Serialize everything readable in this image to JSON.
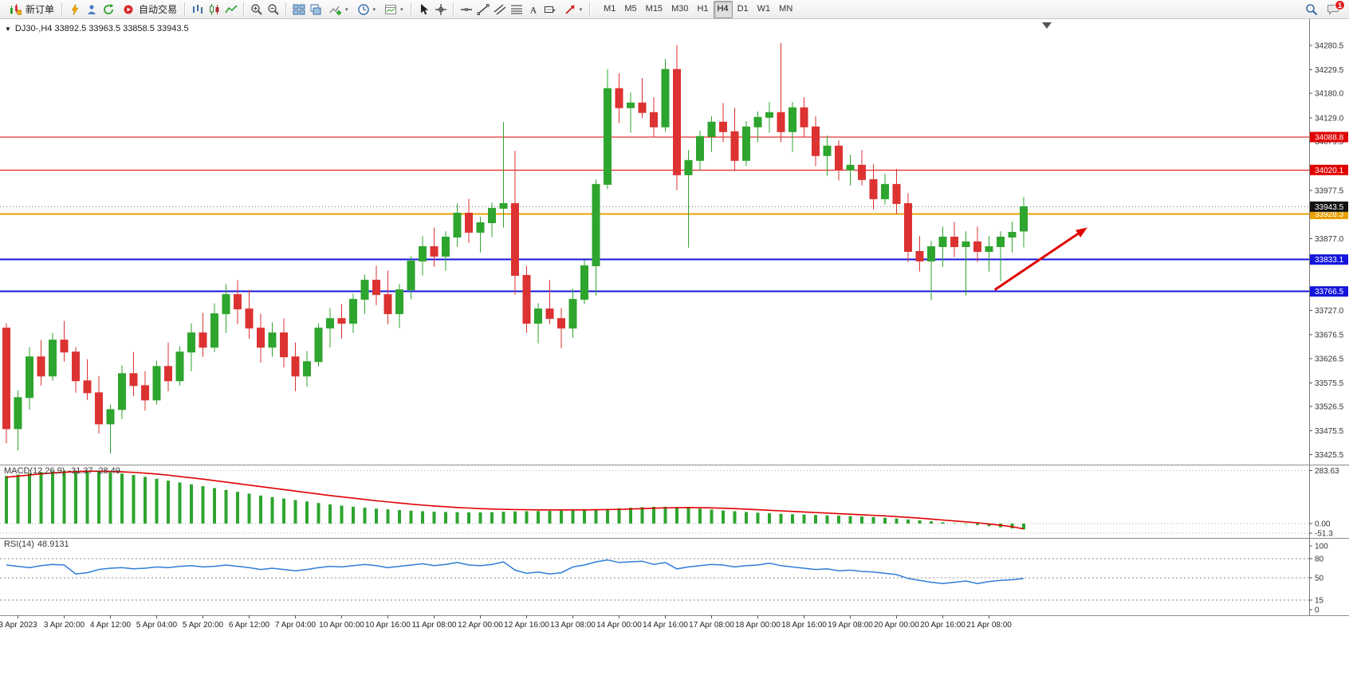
{
  "toolbar": {
    "new_order": "新订单",
    "auto_trading": "自动交易",
    "timeframes": [
      "M1",
      "M5",
      "M15",
      "M30",
      "H1",
      "H4",
      "D1",
      "W1",
      "MN"
    ],
    "active_timeframe": "H4",
    "badge_count": "1"
  },
  "chart": {
    "title": "DJ30-,H4 33892.5 33963.5 33858.5 33943.5"
  },
  "macd": {
    "label": "MACD(12,26,9)",
    "values": "-31.37 -28.49"
  },
  "rsi": {
    "label": "RSI(14)",
    "value": "48.9131"
  },
  "chart_data": {
    "type": "candlestick",
    "symbol": "DJ30-",
    "period": "H4",
    "current_price": 33943.5,
    "last_bar": {
      "open": 33892.5,
      "high": 33963.5,
      "low": 33858.5,
      "close": 33943.5
    },
    "up_color": "#2EA52E",
    "down_color": "#DC3232",
    "ylim": [
      33405,
      34335
    ],
    "price_axis_ticks": [
      "34280.5",
      "34229.5",
      "34180.0",
      "34129.0",
      "34079.5",
      "33977.5",
      "33877.0",
      "33727.0",
      "33676.5",
      "33626.5",
      "33575.5",
      "33526.5",
      "33475.5",
      "33425.5"
    ],
    "horizontal_lines": [
      {
        "price": 34088.8,
        "label": "34088.8",
        "color": "#E00000",
        "width": 1
      },
      {
        "price": 34020.1,
        "label": "34020.1",
        "color": "#E00000",
        "width": 1
      },
      {
        "price": 33928.3,
        "label": "33928.3",
        "color": "#E8A000",
        "width": 2
      },
      {
        "price": 33833.1,
        "label": "33833.1",
        "color": "#1414DC",
        "width": 2
      },
      {
        "price": 33766.5,
        "label": "33766.5",
        "color": "#1414DC",
        "width": 2
      }
    ],
    "trend_arrow": {
      "from_candle": 85.5,
      "from_price": 33770,
      "to_candle": 93.5,
      "to_price": 33900,
      "color": "#E00000"
    },
    "shift_marker_candle": 90,
    "label_start_index": 1,
    "label_step": 4,
    "time_labels": [
      "3 Apr 2023",
      "3 Apr 20:00",
      "4 Apr 12:00",
      "5 Apr 04:00",
      "5 Apr 20:00",
      "6 Apr 12:00",
      "7 Apr 04:00",
      "10 Apr 00:00",
      "10 Apr 16:00",
      "11 Apr 08:00",
      "12 Apr 00:00",
      "12 Apr 16:00",
      "13 Apr 08:00",
      "14 Apr 00:00",
      "14 Apr 16:00",
      "17 Apr 08:00",
      "18 Apr 00:00",
      "18 Apr 16:00",
      "19 Apr 08:00",
      "20 Apr 00:00",
      "20 Apr 16:00",
      "21 Apr 08:00"
    ],
    "candles": [
      [
        33690,
        33700,
        33450,
        33480
      ],
      [
        33480,
        33560,
        33435,
        33545
      ],
      [
        33545,
        33650,
        33520,
        33630
      ],
      [
        33630,
        33665,
        33570,
        33590
      ],
      [
        33590,
        33680,
        33580,
        33665
      ],
      [
        33665,
        33705,
        33620,
        33640
      ],
      [
        33640,
        33650,
        33555,
        33580
      ],
      [
        33580,
        33625,
        33540,
        33555
      ],
      [
        33555,
        33590,
        33470,
        33490
      ],
      [
        33490,
        33530,
        33428,
        33520
      ],
      [
        33520,
        33612,
        33500,
        33595
      ],
      [
        33595,
        33640,
        33548,
        33570
      ],
      [
        33570,
        33600,
        33518,
        33540
      ],
      [
        33540,
        33622,
        33530,
        33610
      ],
      [
        33610,
        33660,
        33558,
        33580
      ],
      [
        33580,
        33652,
        33570,
        33640
      ],
      [
        33640,
        33700,
        33600,
        33680
      ],
      [
        33680,
        33722,
        33630,
        33650
      ],
      [
        33650,
        33742,
        33640,
        33720
      ],
      [
        33720,
        33782,
        33680,
        33760
      ],
      [
        33760,
        33790,
        33698,
        33730
      ],
      [
        33730,
        33770,
        33668,
        33690
      ],
      [
        33690,
        33720,
        33618,
        33650
      ],
      [
        33650,
        33702,
        33630,
        33680
      ],
      [
        33680,
        33710,
        33608,
        33630
      ],
      [
        33630,
        33660,
        33558,
        33590
      ],
      [
        33590,
        33642,
        33568,
        33620
      ],
      [
        33620,
        33700,
        33610,
        33690
      ],
      [
        33690,
        33732,
        33650,
        33710
      ],
      [
        33710,
        33740,
        33668,
        33700
      ],
      [
        33700,
        33762,
        33680,
        33750
      ],
      [
        33750,
        33802,
        33720,
        33790
      ],
      [
        33790,
        33820,
        33738,
        33760
      ],
      [
        33760,
        33810,
        33698,
        33720
      ],
      [
        33720,
        33782,
        33690,
        33770
      ],
      [
        33770,
        33840,
        33750,
        33830
      ],
      [
        33830,
        33882,
        33800,
        33860
      ],
      [
        33860,
        33900,
        33818,
        33840
      ],
      [
        33840,
        33892,
        33810,
        33880
      ],
      [
        33880,
        33950,
        33860,
        33930
      ],
      [
        33930,
        33960,
        33868,
        33890
      ],
      [
        33890,
        33922,
        33848,
        33910
      ],
      [
        33910,
        33952,
        33880,
        33940
      ],
      [
        33940,
        34120,
        33900,
        33950
      ],
      [
        33950,
        34060,
        33760,
        33800
      ],
      [
        33800,
        33820,
        33680,
        33700
      ],
      [
        33700,
        33742,
        33658,
        33730
      ],
      [
        33730,
        33790,
        33698,
        33710
      ],
      [
        33710,
        33732,
        33648,
        33690
      ],
      [
        33690,
        33772,
        33670,
        33750
      ],
      [
        33750,
        33832,
        33740,
        33820
      ],
      [
        33820,
        34000,
        33758,
        33990
      ],
      [
        33990,
        34230,
        33980,
        34190
      ],
      [
        34190,
        34222,
        34118,
        34150
      ],
      [
        34150,
        34182,
        34098,
        34160
      ],
      [
        34160,
        34212,
        34128,
        34140
      ],
      [
        34140,
        34172,
        34088,
        34110
      ],
      [
        34110,
        34252,
        34100,
        34230
      ],
      [
        34230,
        34281,
        33978,
        34010
      ],
      [
        34010,
        34062,
        33858,
        34040
      ],
      [
        34040,
        34102,
        34018,
        34090
      ],
      [
        34090,
        34132,
        34058,
        34120
      ],
      [
        34120,
        34160,
        34078,
        34100
      ],
      [
        34100,
        34150,
        34018,
        34040
      ],
      [
        34040,
        34122,
        34028,
        34110
      ],
      [
        34110,
        34142,
        34078,
        34130
      ],
      [
        34130,
        34162,
        34098,
        34140
      ],
      [
        34140,
        34285,
        34078,
        34100
      ],
      [
        34100,
        34162,
        34058,
        34150
      ],
      [
        34150,
        34172,
        34088,
        34110
      ],
      [
        34110,
        34132,
        34028,
        34050
      ],
      [
        34050,
        34092,
        34008,
        34070
      ],
      [
        34070,
        34082,
        33998,
        34020
      ],
      [
        34020,
        34052,
        33988,
        34030
      ],
      [
        34030,
        34062,
        33988,
        34000
      ],
      [
        34000,
        34032,
        33938,
        33960
      ],
      [
        33960,
        34012,
        33948,
        33990
      ],
      [
        33990,
        34022,
        33928,
        33950
      ],
      [
        33950,
        33972,
        33828,
        33850
      ],
      [
        33850,
        33882,
        33808,
        33830
      ],
      [
        33830,
        33872,
        33748,
        33860
      ],
      [
        33860,
        33902,
        33818,
        33880
      ],
      [
        33880,
        33912,
        33838,
        33860
      ],
      [
        33860,
        33892,
        33758,
        33870
      ],
      [
        33870,
        33902,
        33828,
        33850
      ],
      [
        33850,
        33882,
        33808,
        33860
      ],
      [
        33860,
        33892,
        33788,
        33880
      ],
      [
        33880,
        33912,
        33848,
        33890
      ],
      [
        33892.5,
        33963.5,
        33858.5,
        33943.5
      ]
    ],
    "macd_data": {
      "histogram_color": "#2EA52E",
      "signal_color": "#E00000",
      "ylim": [
        -60,
        290
      ],
      "axis_labels": [
        "283.63",
        "0.00",
        "-51.3"
      ],
      "current_macd": -31.37,
      "current_signal": -28.49,
      "histogram": [
        255,
        262,
        270,
        276,
        280,
        283,
        283,
        281,
        278,
        274,
        268,
        260,
        250,
        240,
        230,
        220,
        210,
        200,
        190,
        180,
        170,
        160,
        150,
        142,
        134,
        126,
        118,
        110,
        103,
        96,
        90,
        85,
        80,
        76,
        72,
        69,
        66,
        64,
        62,
        61,
        60,
        60,
        61,
        63,
        65,
        66,
        67,
        68,
        69,
        70,
        72,
        75,
        78,
        82,
        85,
        88,
        90,
        90,
        88,
        85,
        80,
        75,
        70,
        66,
        62,
        58,
        55,
        52,
        50,
        48,
        46,
        44,
        42,
        40,
        38,
        35,
        31,
        27,
        22,
        17,
        12,
        7,
        2,
        -3,
        -8,
        -14,
        -20,
        -26,
        -31.37
      ],
      "signal": [
        248,
        254,
        260,
        266,
        271,
        275,
        278,
        280,
        280,
        279,
        277,
        274,
        270,
        265,
        259,
        252,
        245,
        238,
        230,
        222,
        214,
        206,
        198,
        190,
        182,
        174,
        166,
        158,
        150,
        143,
        136,
        129,
        122,
        116,
        110,
        104,
        99,
        94,
        90,
        86,
        83,
        80,
        78,
        76,
        75,
        74,
        73,
        73,
        73,
        73,
        73,
        74,
        75,
        76,
        78,
        80,
        82,
        84,
        85,
        86,
        85,
        84,
        82,
        80,
        77,
        74,
        71,
        68,
        65,
        62,
        59,
        56,
        53,
        50,
        47,
        44,
        41,
        37,
        33,
        29,
        24,
        19,
        14,
        9,
        4,
        -2,
        -9,
        -17,
        -28.49
      ]
    },
    "rsi_data": {
      "line_color": "#2F7ED8",
      "ylim": [
        0,
        100
      ],
      "levels": [
        80,
        50,
        15
      ],
      "axis_labels": [
        "100",
        "80",
        "50",
        "15",
        "0"
      ],
      "current": 48.9131,
      "values": [
        70,
        68,
        66,
        69,
        71,
        70,
        56,
        58,
        63,
        65,
        66,
        64,
        65,
        67,
        66,
        68,
        69,
        67,
        68,
        70,
        68,
        66,
        63,
        65,
        63,
        61,
        63,
        66,
        68,
        67,
        69,
        71,
        69,
        66,
        68,
        70,
        72,
        69,
        71,
        74,
        70,
        69,
        71,
        75,
        62,
        57,
        59,
        56,
        58,
        67,
        70,
        75,
        78,
        74,
        75,
        76,
        71,
        74,
        64,
        67,
        69,
        71,
        70,
        67,
        69,
        70,
        73,
        69,
        67,
        65,
        63,
        64,
        61,
        62,
        60,
        59,
        57,
        55,
        49,
        46,
        43,
        41,
        43,
        45,
        41,
        44,
        46,
        47,
        48.91
      ]
    }
  }
}
